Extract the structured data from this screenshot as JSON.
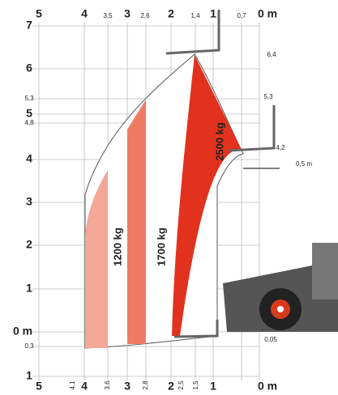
{
  "top_axis": {
    "major": [
      "5",
      "4",
      "3",
      "2",
      "1",
      "0 m"
    ],
    "minor": [
      "3,5",
      "2,6",
      "1,4",
      "0,7"
    ]
  },
  "left_axis": {
    "major": [
      "7",
      "6",
      "5",
      "4",
      "3",
      "2",
      "1",
      "0 m",
      "1"
    ],
    "minor": [
      "5,3",
      "4,8",
      "0,3"
    ]
  },
  "bottom_axis": {
    "major": [
      "5",
      "4",
      "3",
      "2",
      "1",
      "0 m"
    ],
    "minor": [
      "4,1",
      "3,6",
      "2,8",
      "2,5",
      "1,5"
    ]
  },
  "annotations": [
    "6,4",
    "5,3",
    "4,2",
    "0,5 m",
    "0,05"
  ],
  "load_labels": [
    "1200 kg",
    "1700 kg",
    "2500 kg"
  ]
}
